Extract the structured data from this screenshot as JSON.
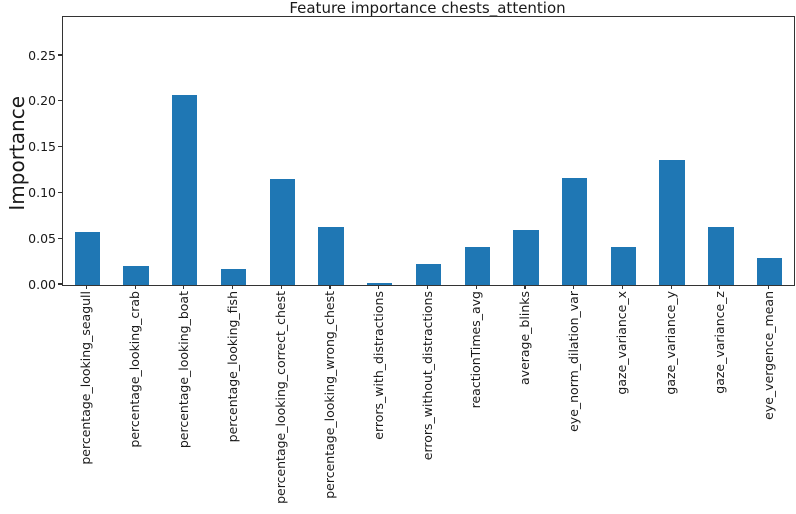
{
  "chart_data": {
    "type": "bar",
    "title": "Feature importance chests_attention",
    "ylabel": "Importance",
    "xlabel": "",
    "categories": [
      "percentage_looking_seagull",
      "percentage_looking_crab",
      "percentage_looking_boat",
      "percentage_looking_fish",
      "percentage_looking_correct_chest",
      "percentage_looking_wrong_chest",
      "errors_with_distractions",
      "errors_without_distractions",
      "reactionTimes_avg",
      "average_blinks",
      "eye_norm_dilation_var",
      "gaze_variance_x",
      "gaze_variance_y",
      "gaze_variance_z",
      "eye_vergence_mean"
    ],
    "values": [
      0.058,
      0.021,
      0.207,
      0.017,
      0.116,
      0.063,
      0.002,
      0.023,
      0.042,
      0.06,
      0.117,
      0.041,
      0.136,
      0.063,
      0.03
    ],
    "yticks": [
      0,
      0.05,
      0.1,
      0.15,
      0.2,
      0.25
    ],
    "ytick_labels": [
      "0.00",
      "0.05",
      "0.10",
      "0.15",
      "0.20",
      "0.25"
    ],
    "ylim": [
      0,
      0.2926
    ],
    "x_tick_rotation": 90,
    "grid": false,
    "legend": null,
    "bar_color": "#1f77b4",
    "spine_color": "#333333",
    "text_color": "#1a1a1a"
  }
}
